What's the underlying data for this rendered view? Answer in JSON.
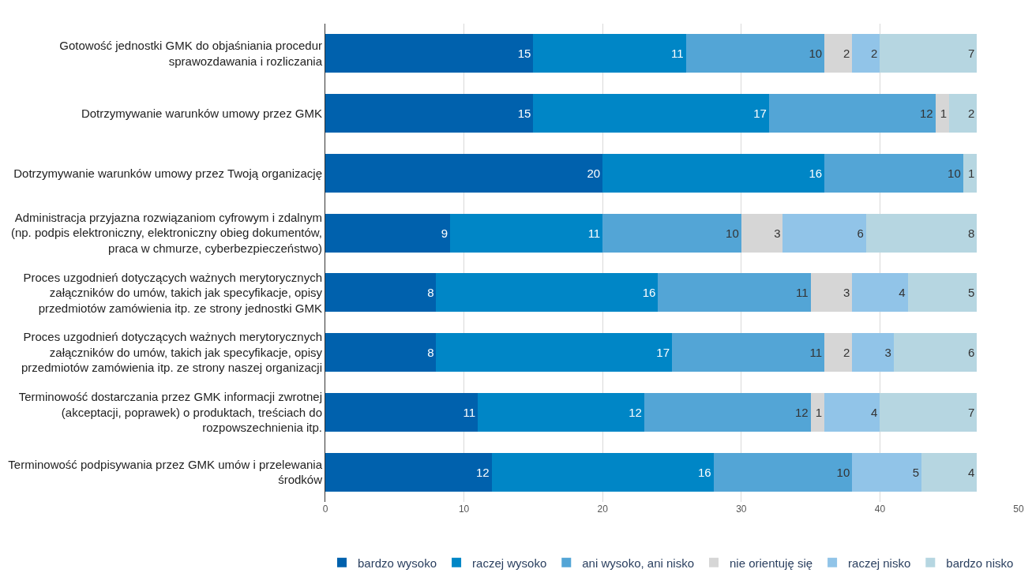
{
  "chart_data": {
    "type": "bar",
    "orientation": "horizontal",
    "stacked": true,
    "data_labels": true,
    "grid": "x",
    "legend": "bottom",
    "xlim": [
      0,
      50
    ],
    "xticks": [
      0,
      10,
      20,
      30,
      40,
      50
    ],
    "categories": [
      "Gotowość jednostki GMK do objaśniania procedur sprawozdawania i rozliczania",
      "Dotrzymywanie warunków umowy przez GMK",
      "Dotrzymywanie warunków umowy przez Twoją organizację",
      "Administracja przyjazna rozwiązaniom cyfrowym i zdalnym (np. podpis elektroniczny, elektroniczny obieg dokumentów, praca w chmurze, cyberbezpieczeństwo)",
      "Proces uzgodnień dotyczących ważnych merytorycznych załączników do umów, takich jak specyfikacje, opisy przedmiotów zamówienia itp. ze strony jednostki GMK",
      "Proces uzgodnień dotyczących ważnych merytorycznych załączników do umów, takich jak specyfikacje, opisy przedmiotów zamówienia itp. ze strony naszej organizacji",
      "Terminowość dostarczania przez GMK informacji zwrotnej (akceptacji, poprawek) o produktach, treściach do rozpowszechnienia itp.",
      "Terminowość podpisywania przez GMK umów i przelewania środków"
    ],
    "series": [
      {
        "name": "bardzo wysoko",
        "color": "#0061ad",
        "values": [
          15,
          15,
          20,
          9,
          8,
          8,
          11,
          12
        ]
      },
      {
        "name": "raczej wysoko",
        "color": "#0086c6",
        "values": [
          11,
          17,
          16,
          11,
          16,
          17,
          12,
          16
        ]
      },
      {
        "name": "ani wysoko, ani nisko",
        "color": "#53a5d6",
        "values": [
          10,
          12,
          10,
          10,
          11,
          11,
          12,
          10
        ]
      },
      {
        "name": "nie orientuję się",
        "color": "#d6d6d6",
        "values": [
          2,
          1,
          null,
          3,
          3,
          2,
          1,
          null
        ]
      },
      {
        "name": "raczej nisko",
        "color": "#91c4e8",
        "values": [
          2,
          null,
          null,
          6,
          4,
          3,
          4,
          5
        ]
      },
      {
        "name": "bardzo nisko",
        "color": "#b6d6e1",
        "values": [
          7,
          2,
          1,
          8,
          5,
          6,
          7,
          4
        ]
      }
    ]
  }
}
